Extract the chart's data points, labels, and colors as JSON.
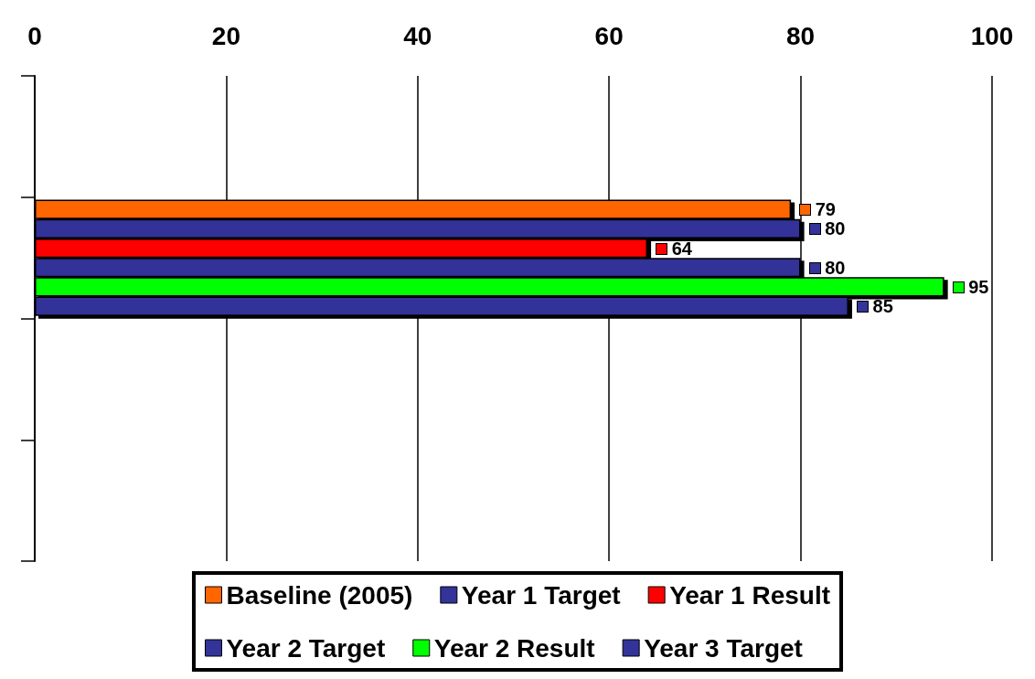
{
  "chart_data": {
    "type": "bar",
    "orientation": "horizontal",
    "categories": [
      null,
      null,
      null,
      null
    ],
    "series": [
      {
        "name": "Baseline (2005)",
        "color": "#ff6600",
        "values": [
          null,
          79,
          null,
          null
        ]
      },
      {
        "name": "Year 1 Target",
        "color": "#333399",
        "values": [
          null,
          80,
          null,
          null
        ]
      },
      {
        "name": "Year 1 Result",
        "color": "#ff0000",
        "values": [
          null,
          64,
          null,
          null
        ]
      },
      {
        "name": "Year 2 Target",
        "color": "#333399",
        "values": [
          null,
          80,
          null,
          null
        ]
      },
      {
        "name": "Year 2 Result",
        "color": "#00ff00",
        "values": [
          null,
          95,
          null,
          null
        ]
      },
      {
        "name": "Year 3 Target",
        "color": "#333399",
        "values": [
          null,
          85,
          null,
          null
        ]
      }
    ],
    "xlim": [
      0,
      100
    ],
    "xticks": [
      0,
      20,
      40,
      60,
      80,
      100
    ],
    "grid": "x",
    "data_labels": true,
    "legend": "bottom"
  }
}
